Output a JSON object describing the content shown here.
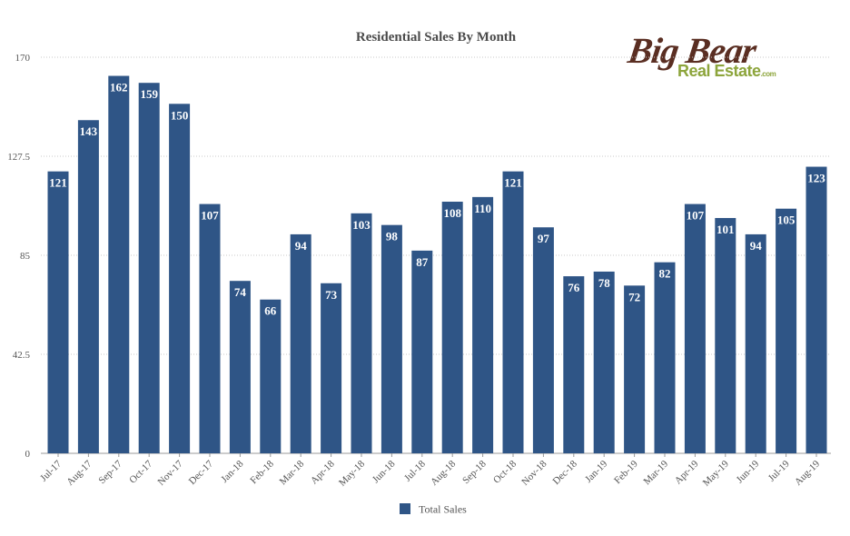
{
  "logo": {
    "line1": "Big Bear",
    "line2": "Real Estate",
    "line3": ".com"
  },
  "colors": {
    "bar": "#2f5586",
    "grid": "#c8c8c8",
    "axis_text": "#555555"
  },
  "chart_data": {
    "type": "bar",
    "title": "Residential Sales By Month",
    "xlabel": "",
    "ylabel": "",
    "ylim": [
      0,
      170
    ],
    "yticks": [
      0,
      42.5,
      85,
      127.5,
      170
    ],
    "ytick_labels": [
      "0",
      "42.5",
      "85",
      "127.5",
      "170"
    ],
    "grid": true,
    "legend_position": "bottom-center",
    "categories": [
      "Jul-17",
      "Aug-17",
      "Sep-17",
      "Oct-17",
      "Nov-17",
      "Dec-17",
      "Jan-18",
      "Feb-18",
      "Mar-18",
      "Apr-18",
      "May-18",
      "Jun-18",
      "Jul-18",
      "Aug-18",
      "Sep-18",
      "Oct-18",
      "Nov-18",
      "Dec-18",
      "Jan-19",
      "Feb-19",
      "Mar-19",
      "Apr-19",
      "May-19",
      "Jun-19",
      "Jul-19",
      "Aug-19"
    ],
    "series": [
      {
        "name": "Total Sales",
        "values": [
          121,
          143,
          162,
          159,
          150,
          107,
          74,
          66,
          94,
          73,
          103,
          98,
          87,
          108,
          110,
          121,
          97,
          76,
          78,
          72,
          82,
          107,
          101,
          94,
          105,
          123
        ]
      }
    ]
  }
}
